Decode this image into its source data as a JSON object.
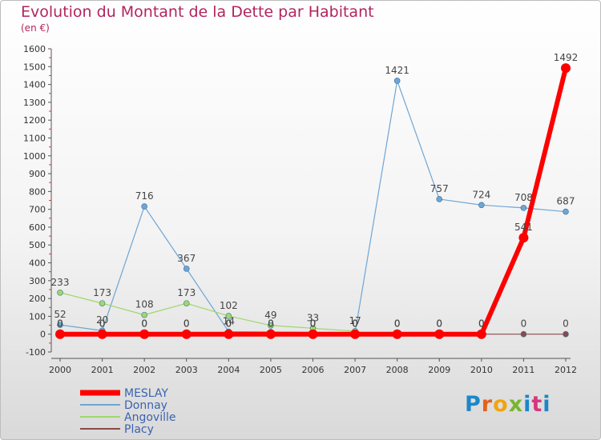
{
  "chart_data": {
    "type": "line",
    "title": "Evolution du Montant de la Dette par Habitant",
    "subtitle": "(en €)",
    "x": [
      "2000",
      "2001",
      "2002",
      "2003",
      "2004",
      "2005",
      "2006",
      "2007",
      "2008",
      "2009",
      "2010",
      "2011",
      "2012"
    ],
    "ylim": [
      -100,
      1600
    ],
    "yticks": [
      -100,
      0,
      100,
      200,
      300,
      400,
      500,
      600,
      700,
      800,
      900,
      1000,
      1100,
      1200,
      1300,
      1400,
      1500,
      1600
    ],
    "grid": false,
    "legend_position": "bottom-left",
    "series": [
      {
        "name": "MESLAY",
        "color": "#ff0000",
        "values": [
          0,
          0,
          0,
          0,
          0,
          0,
          0,
          0,
          0,
          0,
          0,
          541,
          1492
        ],
        "labels": [
          "0",
          "0",
          "0",
          "0",
          "0",
          "0",
          "0",
          "0",
          "0",
          "0",
          "0",
          "541",
          "1492"
        ]
      },
      {
        "name": "Donnay",
        "color": "#6fa5d4",
        "values": [
          52,
          20,
          716,
          367,
          14,
          12,
          10,
          7,
          1421,
          757,
          724,
          708,
          687
        ],
        "labels": [
          "52",
          "20",
          "716",
          "367",
          "14",
          "",
          "",
          "",
          "1421",
          "757",
          "724",
          "708",
          "687"
        ]
      },
      {
        "name": "Angoville",
        "color": "#9fd86a",
        "values": [
          233,
          173,
          108,
          173,
          102,
          49,
          33,
          17,
          null,
          null,
          null,
          null,
          null
        ],
        "labels": [
          "233",
          "173",
          "108",
          "173",
          "102",
          "49",
          "33",
          "17",
          "",
          "",
          "",
          "",
          ""
        ]
      },
      {
        "name": "Placy",
        "color": "#8b4a4a",
        "values": [
          0,
          0,
          0,
          0,
          0,
          0,
          0,
          0,
          0,
          0,
          0,
          0,
          0
        ],
        "labels": [
          "0",
          "0",
          "0",
          "0",
          "0",
          "0",
          "0",
          "0",
          "0",
          "0",
          "0",
          "0",
          "0"
        ]
      }
    ]
  },
  "logo_text": "Proxiti"
}
